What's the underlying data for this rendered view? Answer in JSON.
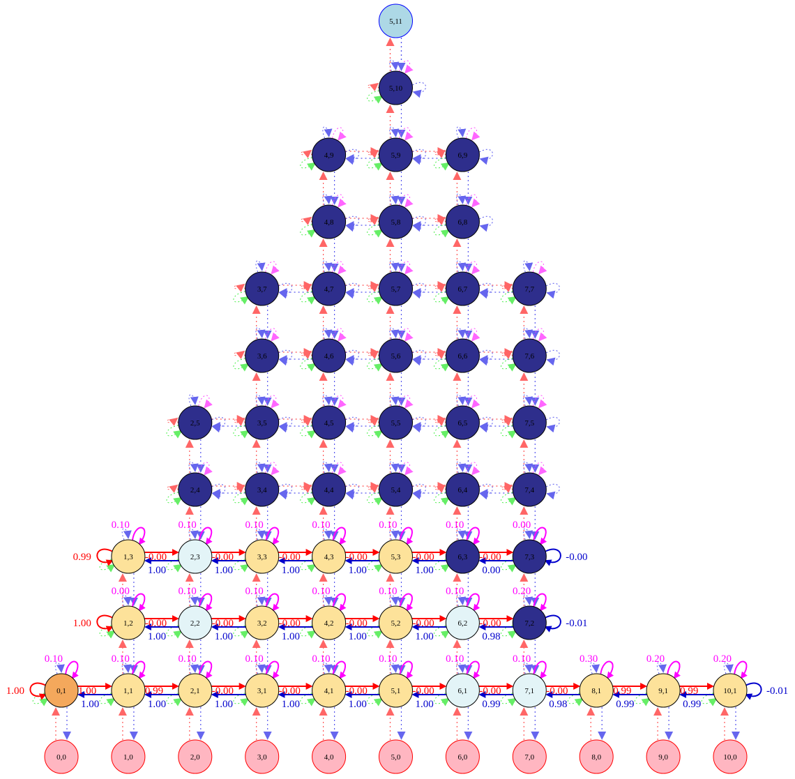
{
  "palette": {
    "orange": "#f4a85c",
    "yellow": "#fde29a",
    "light": "#e3f4f7",
    "dark": "#2e2e8c",
    "pink": "#ffb6c1",
    "lightblue": "#add8e6",
    "red": "#ff0000",
    "blue": "#0000cc",
    "magenta": "#ff00ff",
    "green": "#44ee44"
  },
  "nodes": [
    {
      "id": "5,11",
      "fill": "lightblue"
    },
    {
      "id": "5,10",
      "fill": "dark"
    },
    {
      "id": "4,9",
      "fill": "dark"
    },
    {
      "id": "5,9",
      "fill": "dark"
    },
    {
      "id": "6,9",
      "fill": "dark"
    },
    {
      "id": "4,8",
      "fill": "dark"
    },
    {
      "id": "5,8",
      "fill": "dark"
    },
    {
      "id": "6,8",
      "fill": "dark"
    },
    {
      "id": "3,7",
      "fill": "dark"
    },
    {
      "id": "4,7",
      "fill": "dark"
    },
    {
      "id": "5,7",
      "fill": "dark"
    },
    {
      "id": "6,7",
      "fill": "dark"
    },
    {
      "id": "7,7",
      "fill": "dark"
    },
    {
      "id": "3,6",
      "fill": "dark"
    },
    {
      "id": "4,6",
      "fill": "dark"
    },
    {
      "id": "5,6",
      "fill": "dark"
    },
    {
      "id": "6,6",
      "fill": "dark"
    },
    {
      "id": "7,6",
      "fill": "dark"
    },
    {
      "id": "2,5",
      "fill": "dark"
    },
    {
      "id": "3,5",
      "fill": "dark"
    },
    {
      "id": "4,5",
      "fill": "dark"
    },
    {
      "id": "5,5",
      "fill": "dark"
    },
    {
      "id": "6,5",
      "fill": "dark"
    },
    {
      "id": "7,5",
      "fill": "dark"
    },
    {
      "id": "2,4",
      "fill": "dark"
    },
    {
      "id": "3,4",
      "fill": "dark"
    },
    {
      "id": "4,4",
      "fill": "dark"
    },
    {
      "id": "5,4",
      "fill": "dark"
    },
    {
      "id": "6,4",
      "fill": "dark"
    },
    {
      "id": "7,4",
      "fill": "dark"
    },
    {
      "id": "1,3",
      "fill": "yellow"
    },
    {
      "id": "2,3",
      "fill": "light"
    },
    {
      "id": "3,3",
      "fill": "yellow"
    },
    {
      "id": "4,3",
      "fill": "yellow"
    },
    {
      "id": "5,3",
      "fill": "yellow"
    },
    {
      "id": "6,3",
      "fill": "dark"
    },
    {
      "id": "7,3",
      "fill": "dark"
    },
    {
      "id": "1,2",
      "fill": "yellow"
    },
    {
      "id": "2,2",
      "fill": "light"
    },
    {
      "id": "3,2",
      "fill": "yellow"
    },
    {
      "id": "4,2",
      "fill": "yellow"
    },
    {
      "id": "5,2",
      "fill": "yellow"
    },
    {
      "id": "6,2",
      "fill": "light"
    },
    {
      "id": "7,2",
      "fill": "dark"
    },
    {
      "id": "0,1",
      "fill": "orange"
    },
    {
      "id": "1,1",
      "fill": "yellow"
    },
    {
      "id": "2,1",
      "fill": "yellow"
    },
    {
      "id": "3,1",
      "fill": "yellow"
    },
    {
      "id": "4,1",
      "fill": "yellow"
    },
    {
      "id": "5,1",
      "fill": "yellow"
    },
    {
      "id": "6,1",
      "fill": "light"
    },
    {
      "id": "7,1",
      "fill": "light"
    },
    {
      "id": "8,1",
      "fill": "yellow"
    },
    {
      "id": "9,1",
      "fill": "yellow"
    },
    {
      "id": "10,1",
      "fill": "yellow"
    },
    {
      "id": "0,0",
      "fill": "pink"
    },
    {
      "id": "1,0",
      "fill": "pink"
    },
    {
      "id": "2,0",
      "fill": "pink"
    },
    {
      "id": "3,0",
      "fill": "pink"
    },
    {
      "id": "4,0",
      "fill": "pink"
    },
    {
      "id": "5,0",
      "fill": "pink"
    },
    {
      "id": "6,0",
      "fill": "pink"
    },
    {
      "id": "7,0",
      "fill": "pink"
    },
    {
      "id": "8,0",
      "fill": "pink"
    },
    {
      "id": "9,0",
      "fill": "pink"
    },
    {
      "id": "10,0",
      "fill": "pink"
    }
  ],
  "rows": [
    {
      "y": 3,
      "self_top": [
        "0.10",
        "0.10",
        "0.10",
        "0.10",
        "0.10",
        "0.10",
        "0.00"
      ],
      "right_labels": [
        "-0.00",
        "-0.00",
        "-0.00",
        "-0.00",
        "-0.00",
        "-0.00"
      ],
      "left_labels": [
        "1.00",
        "1.00",
        "1.00",
        "1.00",
        "1.00",
        "0.00"
      ],
      "left_self": "0.99",
      "right_self": "-0.00"
    },
    {
      "y": 2,
      "self_top": [
        "0.00",
        "0.10",
        "0.10",
        "0.10",
        "0.10",
        "0.10",
        "0.20"
      ],
      "right_labels": [
        "-0.00",
        "-0.00",
        "-0.00",
        "-0.00",
        "-0.00",
        "-0.00"
      ],
      "left_labels": [
        "1.00",
        "1.00",
        "1.00",
        "1.00",
        "1.00",
        "0.98"
      ],
      "left_self": "1.00",
      "right_self": "-0.01"
    },
    {
      "y": 1,
      "self_top": [
        "0.10",
        "0.10",
        "0.10",
        "0.10",
        "0.10",
        "0.10",
        "0.10",
        "0.10",
        "0.30",
        "0.20",
        "0.20"
      ],
      "right_labels": [
        "1.00",
        "0.99",
        "-0.00",
        "-0.00",
        "-0.00",
        "-0.00",
        "-0.00",
        "-0.00",
        "0.99",
        "0.99"
      ],
      "left_labels": [
        "1.00",
        "1.00",
        "1.00",
        "1.00",
        "1.00",
        "1.00",
        "0.99",
        "0.98",
        "0.99",
        "0.99"
      ],
      "left_self": "1.00",
      "right_self": "-0.01"
    }
  ]
}
